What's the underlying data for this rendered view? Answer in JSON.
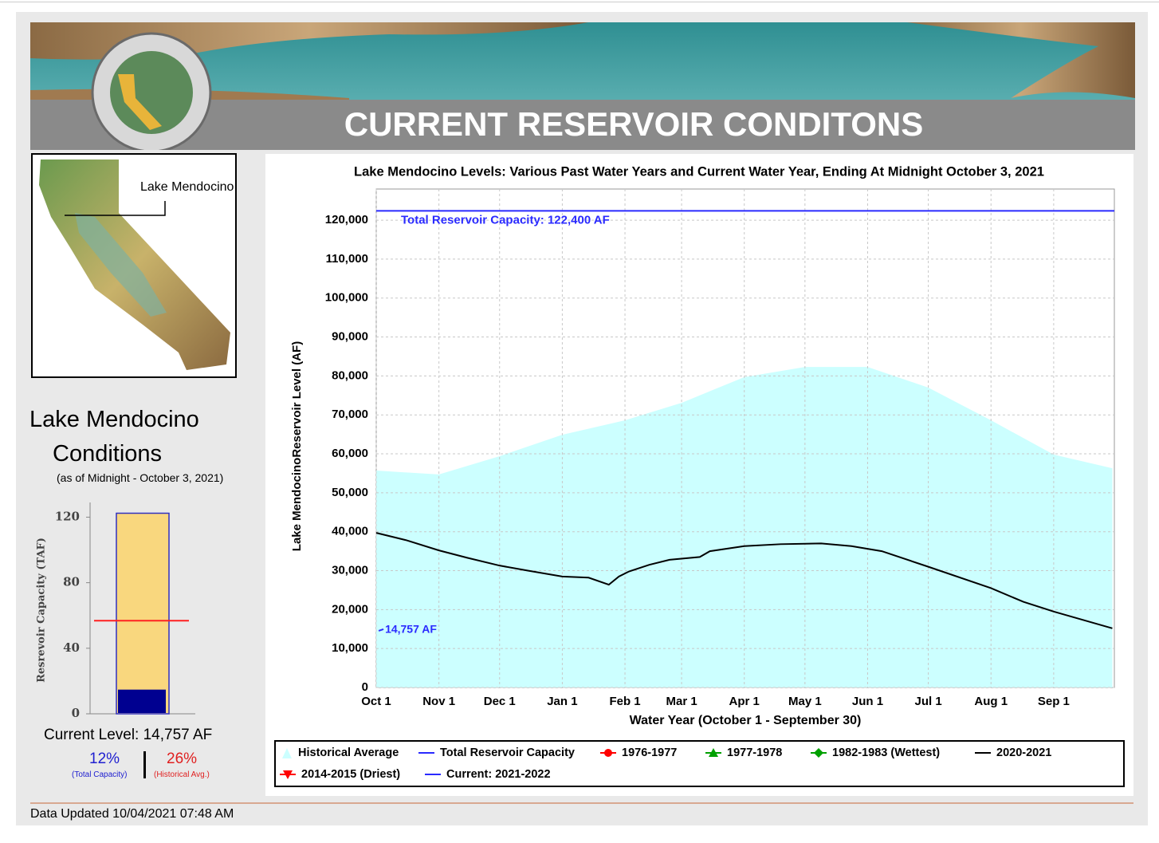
{
  "header": {
    "title": "CURRENT RESERVOIR CONDITONS"
  },
  "map": {
    "label": "Lake Mendocino"
  },
  "conditions": {
    "title_line1": "Lake Mendocino",
    "title_line2": "Conditions",
    "as_of": "(as of Midnight - October 3, 2021)",
    "current_level": "Current Level: 14,757 AF",
    "percent_capacity": "12%",
    "percent_capacity_note": "(Total Capacity)",
    "percent_historical": "26%",
    "percent_historical_note": "(Historical Avg.)"
  },
  "footer": {
    "updated": "Data Updated 10/04/2021 07:48 AM"
  },
  "chart_data": [
    {
      "type": "area_line",
      "title": "Lake Mendocino Levels: Various Past Water Years and Current Water Year, Ending At Midnight October 3, 2021",
      "x_label": "Water Year (October 1 - September 30)",
      "y_label": "Lake MendocinoReservoir Level (AF)",
      "xlim": [
        0,
        365
      ],
      "xticks": [
        {
          "value": 0,
          "label": "Oct 1"
        },
        {
          "value": 31,
          "label": "Nov 1"
        },
        {
          "value": 61,
          "label": "Dec 1"
        },
        {
          "value": 92,
          "label": "Jan 1"
        },
        {
          "value": 123,
          "label": "Feb 1"
        },
        {
          "value": 151,
          "label": "Mar 1"
        },
        {
          "value": 182,
          "label": "Apr 1"
        },
        {
          "value": 212,
          "label": "May 1"
        },
        {
          "value": 243,
          "label": "Jun 1"
        },
        {
          "value": 273,
          "label": "Jul 1"
        },
        {
          "value": 304,
          "label": "Aug 1"
        },
        {
          "value": 335,
          "label": "Sep 1"
        }
      ],
      "ylim": [
        0,
        128000
      ],
      "yticks": [
        0,
        {
          "value": 10000,
          "label": "10,000"
        },
        {
          "value": 20000,
          "label": "20,000"
        },
        {
          "value": 30000,
          "label": "30,000"
        },
        {
          "value": 40000,
          "label": "40,000"
        },
        {
          "value": 50000,
          "label": "50,000"
        },
        {
          "value": 60000,
          "label": "60,000"
        },
        {
          "value": 70000,
          "label": "70,000"
        },
        {
          "value": 80000,
          "label": "80,000"
        },
        {
          "value": 90000,
          "label": "90,000"
        },
        {
          "value": 100000,
          "label": "100,000"
        },
        {
          "value": 110000,
          "label": "110,000"
        },
        {
          "value": 120000,
          "label": "120,000"
        }
      ],
      "grid": true,
      "annotations": [
        {
          "text": "Total Reservoir Capacity: 122,400 AF",
          "value": 122400
        }
      ],
      "series": [
        {
          "name": "Historical Average",
          "color": "#ccffff",
          "kind": "area",
          "x": [
            0,
            31,
            61,
            92,
            123,
            151,
            182,
            212,
            243,
            273,
            304,
            335,
            364
          ],
          "values": [
            55700,
            54700,
            59400,
            64900,
            68600,
            73100,
            79700,
            82300,
            82300,
            77000,
            68600,
            59800,
            56300
          ]
        },
        {
          "name": "Total Reservoir Capacity",
          "color": "#2a2aff",
          "kind": "level",
          "values": [
            122400
          ]
        },
        {
          "name": "1976-1977",
          "color": "#ff0000",
          "marker": "circle"
        },
        {
          "name": "1977-1978",
          "color": "#00a000",
          "marker": "triangle"
        },
        {
          "name": "1982-1983 (Wettest)",
          "color": "#00a000",
          "marker": "diamond"
        },
        {
          "name": "2020-2021",
          "color": "#000000",
          "kind": "line",
          "x": [
            0,
            15,
            31,
            45,
            61,
            75,
            92,
            105,
            115,
            120,
            125,
            135,
            145,
            160,
            165,
            182,
            200,
            220,
            235,
            250,
            273,
            304,
            320,
            335,
            364
          ],
          "values": [
            39700,
            37800,
            35200,
            33300,
            31300,
            30000,
            28500,
            28200,
            26400,
            28500,
            29800,
            31500,
            32800,
            33500,
            35000,
            36300,
            36800,
            37000,
            36300,
            35000,
            31000,
            25500,
            22000,
            19500,
            15200
          ]
        },
        {
          "name": "2014-2015 (Driest)",
          "color": "#ff0000",
          "marker": "triangle-down"
        },
        {
          "name": "Current: 2021-2022",
          "color": "#2a2aff",
          "kind": "point",
          "x": [
            2
          ],
          "values": [
            14757
          ],
          "value_labels": [
            "14,757 AF"
          ]
        }
      ]
    },
    {
      "type": "bar",
      "y_label": "Resrevoir Capacity (TAF)",
      "ylim": [
        0,
        128
      ],
      "yticks": [
        0,
        40,
        80,
        120
      ],
      "capacity": 122.4,
      "capacity_color": "#f9d77e",
      "current": 14.757,
      "current_color": "#000090",
      "historical_average": 56.8,
      "historical_color": "#ff2020"
    }
  ]
}
